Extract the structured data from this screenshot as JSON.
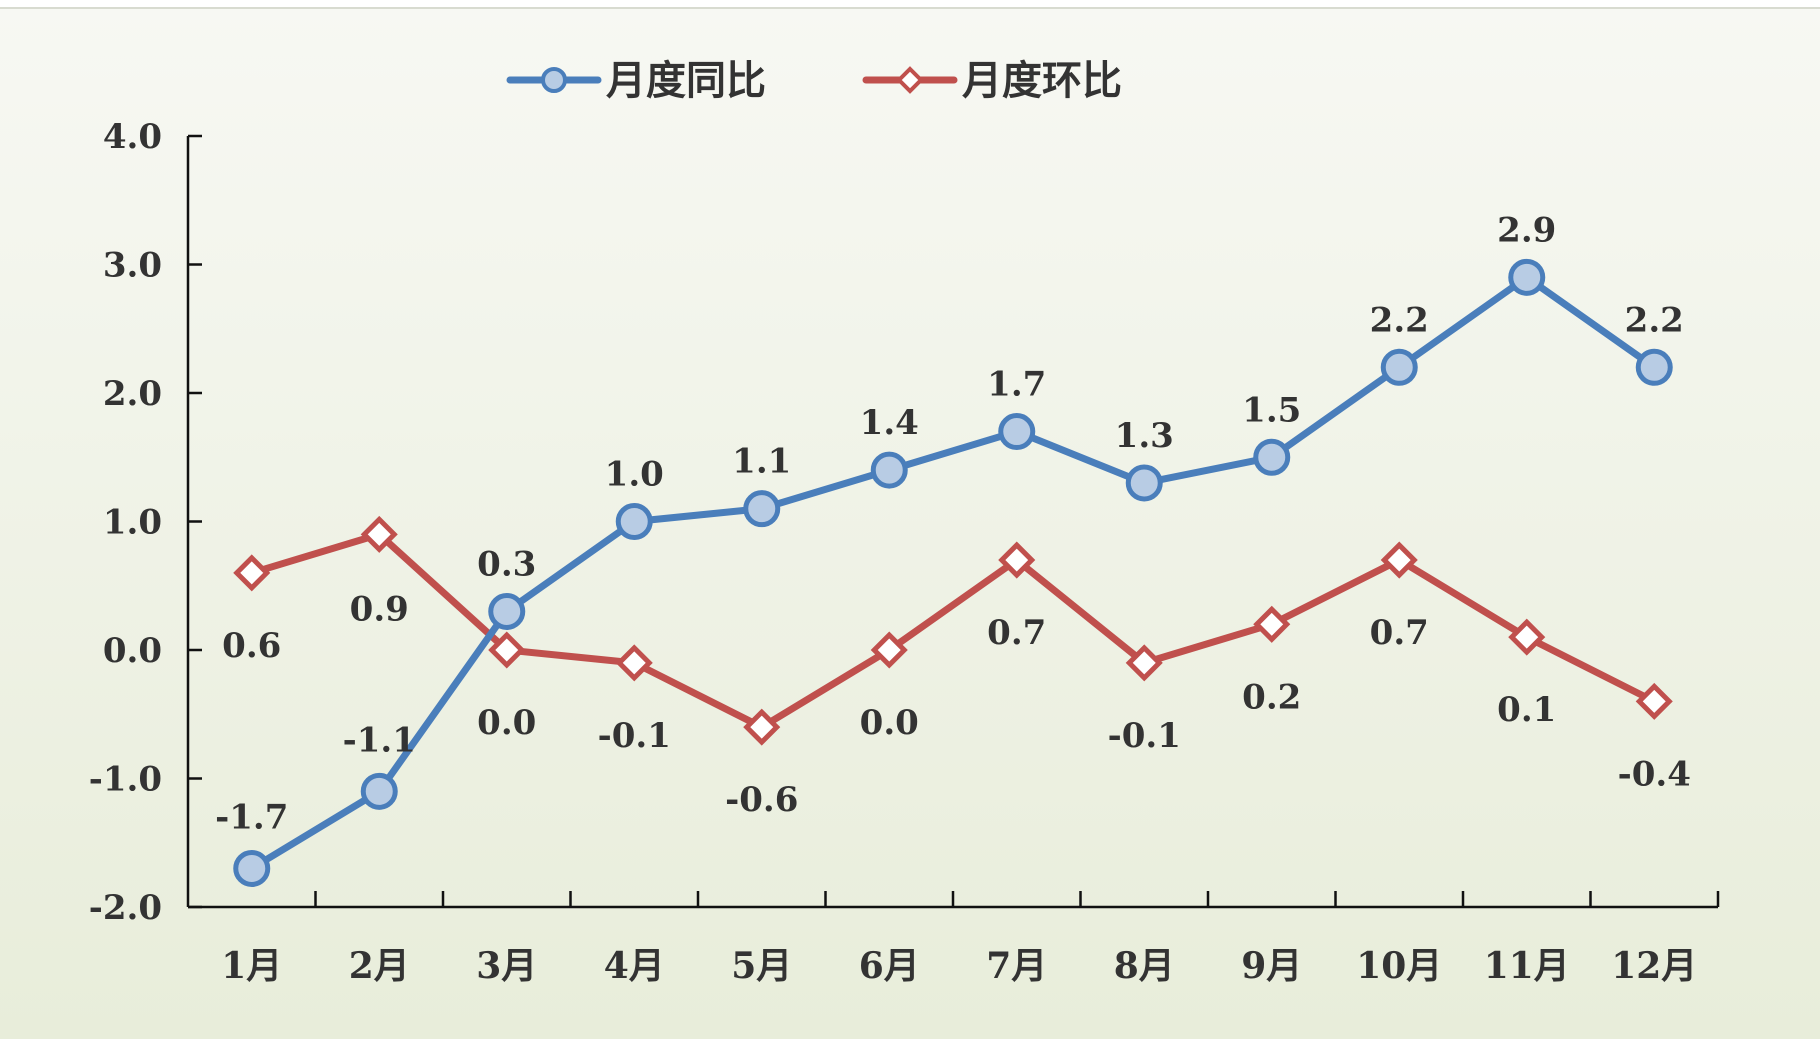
{
  "chart_data": {
    "type": "line",
    "categories": [
      "1月",
      "2月",
      "3月",
      "4月",
      "5月",
      "6月",
      "7月",
      "8月",
      "9月",
      "10月",
      "11月",
      "12月"
    ],
    "series": [
      {
        "name": "月度同比",
        "values": [
          -1.7,
          -1.1,
          0.3,
          1.0,
          1.1,
          1.4,
          1.7,
          1.3,
          1.5,
          2.2,
          2.9,
          2.2
        ],
        "color": "#4a7ebb",
        "marker_fill": "#b8cce4",
        "marker": "circle"
      },
      {
        "name": "月度环比",
        "values": [
          0.6,
          0.9,
          0.0,
          -0.1,
          -0.6,
          0.0,
          0.7,
          -0.1,
          0.2,
          0.7,
          0.1,
          -0.4
        ],
        "color": "#c0504d",
        "marker_fill": "#ffffff",
        "marker": "diamond"
      }
    ],
    "y_ticks": [
      "4.0",
      "3.0",
      "2.0",
      "1.0",
      "0.0",
      "-1.0",
      "-2.0"
    ],
    "ylim": [
      -2.0,
      4.0
    ],
    "legend_position": "top",
    "grid": false,
    "title": "",
    "xlabel": "",
    "ylabel": "",
    "background": "#eef1e4"
  }
}
